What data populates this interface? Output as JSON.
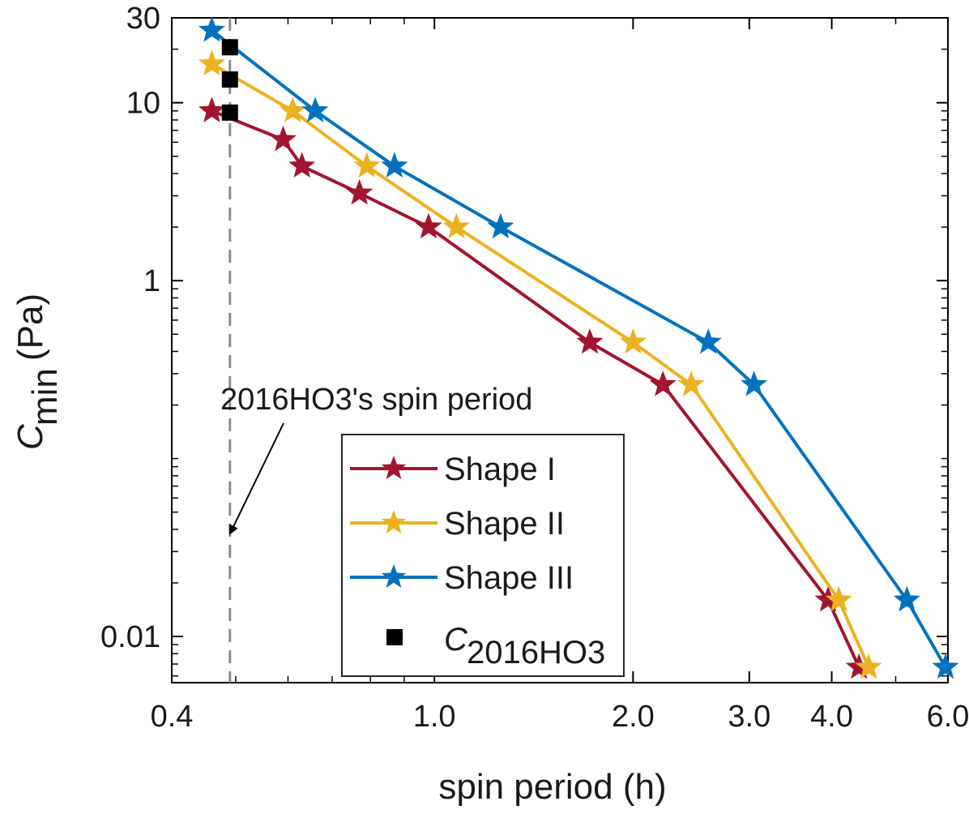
{
  "chart_data": {
    "type": "line",
    "xscale": "log",
    "yscale": "log",
    "xlim": [
      0.4,
      6.0
    ],
    "ylim": [
      0.0055,
      30
    ],
    "xlabel": "spin period (h)",
    "ylabel_main": "C",
    "ylabel_sub": "min",
    "ylabel_unit": "(Pa)",
    "xticks": [
      {
        "value": 0.4,
        "label": "0.4"
      },
      {
        "value": 1.0,
        "label": "1.0"
      },
      {
        "value": 2.0,
        "label": "2.0"
      },
      {
        "value": 3.0,
        "label": "3.0"
      },
      {
        "value": 4.0,
        "label": "4.0"
      },
      {
        "value": 6.0,
        "label": "6.0"
      }
    ],
    "yticks": [
      {
        "value": 0.01,
        "label": "0.01"
      },
      {
        "value": 1,
        "label": "1"
      },
      {
        "value": 10,
        "label": "10"
      },
      {
        "value": 30,
        "label": "30"
      }
    ],
    "series": [
      {
        "name": "Shape I",
        "color": "#a2142f",
        "x": [
          0.46,
          0.59,
          0.63,
          0.77,
          0.98,
          1.72,
          2.22,
          3.95,
          4.4
        ],
        "y": [
          9.0,
          6.2,
          4.4,
          3.1,
          2.0,
          0.45,
          0.26,
          0.016,
          0.0067
        ]
      },
      {
        "name": "Shape II",
        "color": "#edb120",
        "x": [
          0.46,
          0.61,
          0.79,
          1.08,
          2.0,
          2.45,
          4.1,
          4.55
        ],
        "y": [
          16.5,
          9.0,
          4.4,
          2.0,
          0.45,
          0.26,
          0.016,
          0.0067
        ]
      },
      {
        "name": "Shape III",
        "color": "#0072bd",
        "x": [
          0.46,
          0.66,
          0.87,
          1.26,
          2.6,
          3.05,
          5.2,
          5.95
        ],
        "y": [
          25.5,
          9.0,
          4.4,
          2.0,
          0.45,
          0.26,
          0.016,
          0.0067
        ]
      }
    ],
    "reference": {
      "name": "C",
      "name_sub": "2016HO3",
      "x": 0.49,
      "y": [
        8.8,
        13.5,
        20.5
      ],
      "marker": "square",
      "color": "#000000"
    },
    "vline": {
      "x": 0.49,
      "style": "dashed",
      "color": "#8c8c8c"
    },
    "annotation": {
      "text": "2016HO3's spin period"
    },
    "legend": {
      "position": "bottom-center"
    }
  }
}
